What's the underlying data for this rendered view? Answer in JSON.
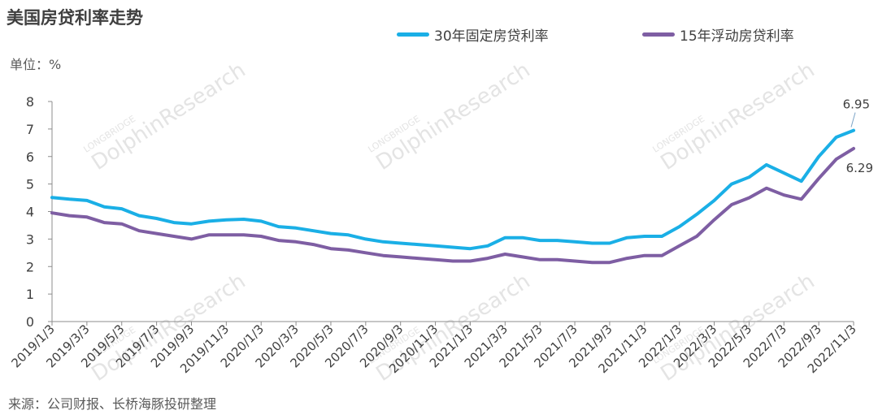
{
  "title": "美国房贷利率走势",
  "unit_label": "单位：%",
  "source": "来源：公司财报、长桥海豚投研整理",
  "watermark": {
    "brand": "LONGBRIDGE",
    "name": "DolphinResearch"
  },
  "legend_position": "top-right",
  "chart_data": {
    "type": "line",
    "title": "美国房贷利率走势",
    "xlabel": "",
    "ylabel": "单位：%",
    "ylim": [
      0,
      8
    ],
    "yticks": [
      0,
      1,
      2,
      3,
      4,
      5,
      6,
      7,
      8
    ],
    "grid": false,
    "x_start": "2019/1/3",
    "x_end": "2022/11/3",
    "x_tick_labels": [
      "2019/1/3",
      "2019/3/3",
      "2019/5/3",
      "2019/7/3",
      "2019/9/3",
      "2019/11/3",
      "2020/1/3",
      "2020/3/3",
      "2020/5/3",
      "2020/7/3",
      "2020/9/3",
      "2020/11/3",
      "2021/1/3",
      "2021/3/3",
      "2021/5/3",
      "2021/7/3",
      "2021/9/3",
      "2021/11/3",
      "2022/1/3",
      "2022/3/3",
      "2022/5/3",
      "2022/7/3",
      "2022/9/3",
      "2022/11/3"
    ],
    "x": [
      "2019/1/3",
      "2019/2/3",
      "2019/3/3",
      "2019/4/3",
      "2019/5/3",
      "2019/6/3",
      "2019/7/3",
      "2019/8/3",
      "2019/9/3",
      "2019/10/3",
      "2019/11/3",
      "2019/12/3",
      "2020/1/3",
      "2020/2/3",
      "2020/3/3",
      "2020/4/3",
      "2020/5/3",
      "2020/6/3",
      "2020/7/3",
      "2020/8/3",
      "2020/9/3",
      "2020/10/3",
      "2020/11/3",
      "2020/12/3",
      "2021/1/3",
      "2021/2/3",
      "2021/3/3",
      "2021/4/3",
      "2021/5/3",
      "2021/6/3",
      "2021/7/3",
      "2021/8/3",
      "2021/9/3",
      "2021/10/3",
      "2021/11/3",
      "2021/12/3",
      "2022/1/3",
      "2022/2/3",
      "2022/3/3",
      "2022/4/3",
      "2022/5/3",
      "2022/6/3",
      "2022/7/3",
      "2022/8/3",
      "2022/9/3",
      "2022/10/3",
      "2022/11/3"
    ],
    "series": [
      {
        "name": "30年固定房贷利率",
        "color": "#1AAFE6",
        "values": [
          4.51,
          4.45,
          4.4,
          4.17,
          4.1,
          3.85,
          3.75,
          3.6,
          3.55,
          3.65,
          3.7,
          3.72,
          3.65,
          3.45,
          3.4,
          3.3,
          3.2,
          3.15,
          3.0,
          2.9,
          2.85,
          2.8,
          2.75,
          2.7,
          2.65,
          2.75,
          3.05,
          3.05,
          2.95,
          2.95,
          2.9,
          2.85,
          2.85,
          3.05,
          3.1,
          3.1,
          3.45,
          3.9,
          4.4,
          5.0,
          5.25,
          5.7,
          5.4,
          5.1,
          6.0,
          6.7,
          6.95
        ],
        "end_label": "6.95"
      },
      {
        "name": "15年浮动房贷利率",
        "color": "#7E5EA3",
        "values": [
          3.95,
          3.85,
          3.8,
          3.6,
          3.55,
          3.3,
          3.2,
          3.1,
          3.0,
          3.15,
          3.15,
          3.15,
          3.1,
          2.95,
          2.9,
          2.8,
          2.65,
          2.6,
          2.5,
          2.4,
          2.35,
          2.3,
          2.25,
          2.2,
          2.2,
          2.3,
          2.45,
          2.35,
          2.25,
          2.25,
          2.2,
          2.15,
          2.15,
          2.3,
          2.4,
          2.4,
          2.75,
          3.1,
          3.7,
          4.25,
          4.5,
          4.85,
          4.6,
          4.45,
          5.2,
          5.9,
          6.29
        ],
        "end_label": "6.29"
      }
    ]
  }
}
